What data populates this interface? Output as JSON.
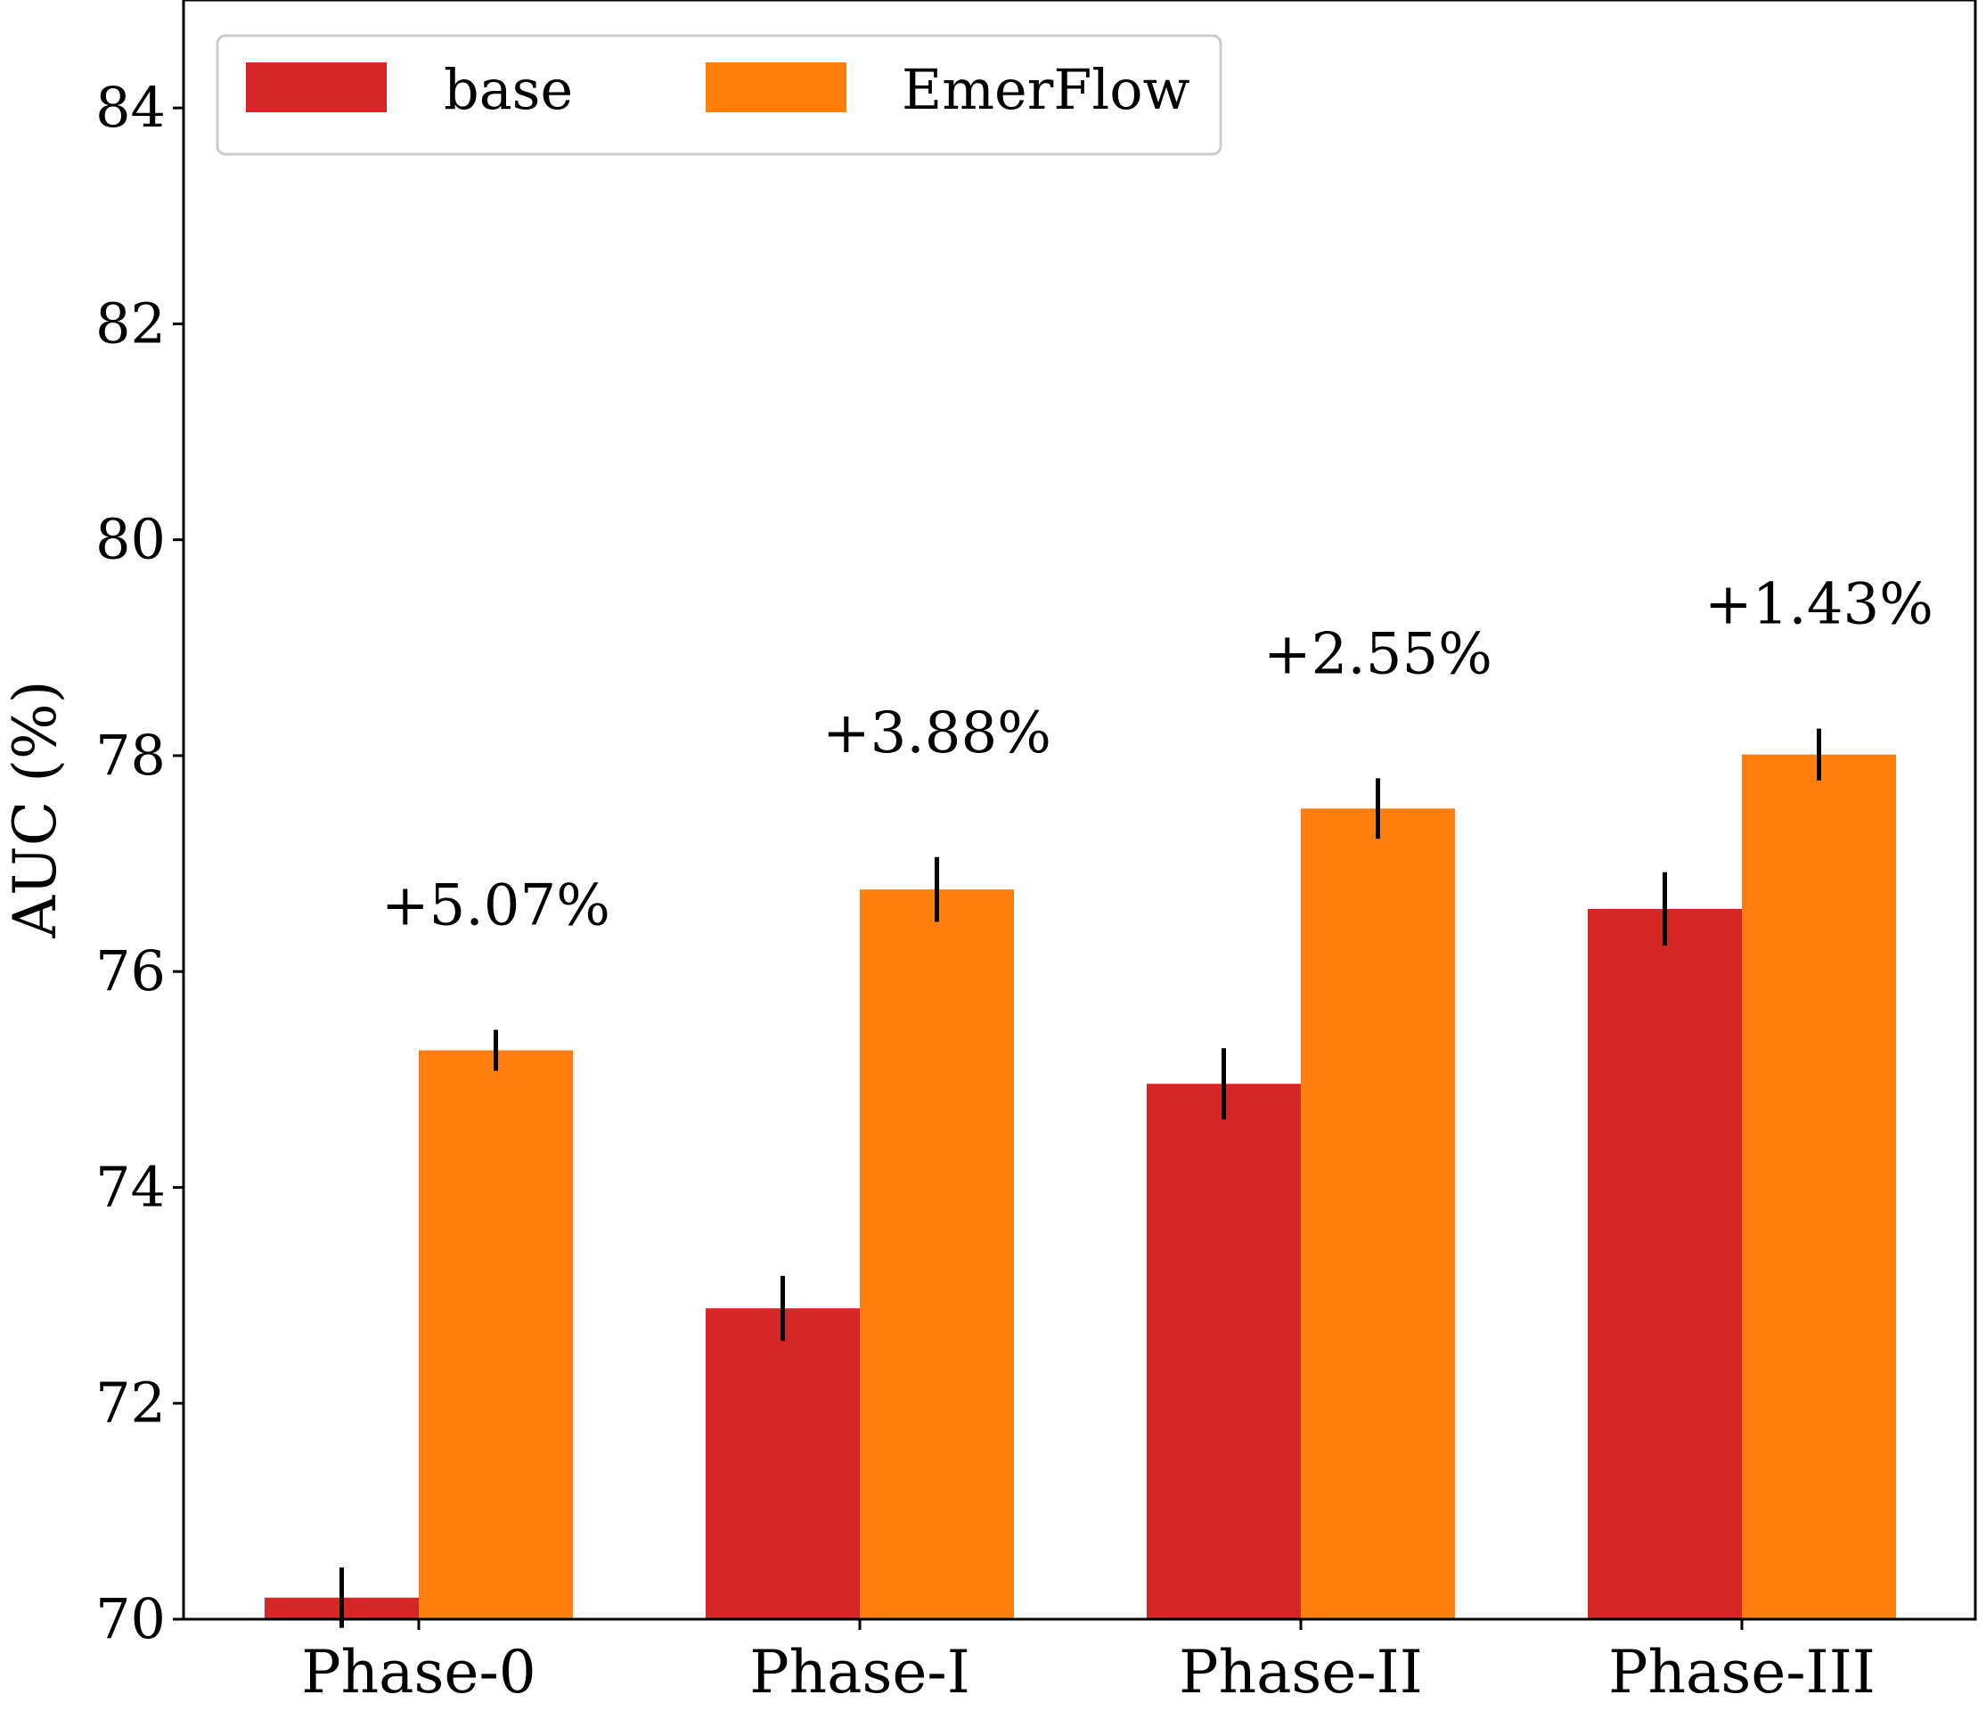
{
  "chart_data": {
    "type": "bar",
    "title": "",
    "xlabel": "",
    "ylabel": "AUC (%)",
    "ylim": [
      70,
      85
    ],
    "yticks": [
      70,
      72,
      74,
      76,
      78,
      80,
      82,
      84
    ],
    "categories": [
      "Phase-0",
      "Phase-I",
      "Phase-II",
      "Phase-III"
    ],
    "series": [
      {
        "name": "base",
        "color": "#d62728",
        "values": [
          70.2,
          72.88,
          74.96,
          76.58
        ],
        "errors": [
          0.28,
          0.3,
          0.33,
          0.34
        ]
      },
      {
        "name": "EmerFlow",
        "color": "#ff7f0e",
        "values": [
          75.27,
          76.76,
          77.51,
          78.01
        ],
        "errors": [
          0.19,
          0.3,
          0.28,
          0.24
        ]
      }
    ],
    "annotations": [
      "+5.07%",
      "+3.88%",
      "+2.55%",
      "+1.43%"
    ],
    "legend_position": "top-left",
    "grid": false
  }
}
